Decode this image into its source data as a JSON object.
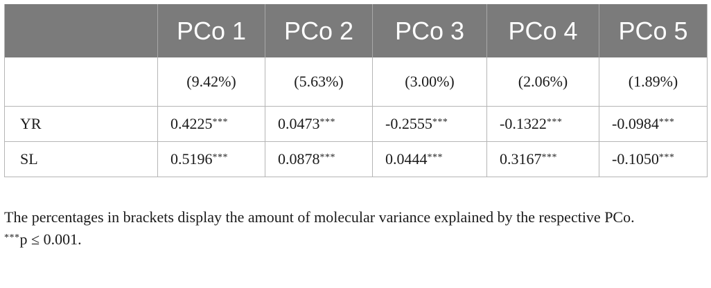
{
  "table": {
    "header": [
      "",
      "PCo 1",
      "PCo 2",
      "PCo 3",
      "PCo 4",
      "PCo 5"
    ],
    "percent_row": [
      "",
      "(9.42%)",
      "(5.63%)",
      "(3.00%)",
      "(2.06%)",
      "(1.89%)"
    ],
    "rows": [
      {
        "label": "YR",
        "values": [
          "0.4225",
          "0.0473",
          "-0.2555",
          "-0.1322",
          "-0.0984"
        ],
        "marks": [
          "***",
          "***",
          "***",
          "***",
          "***"
        ]
      },
      {
        "label": "SL",
        "values": [
          "0.5196",
          "0.0878",
          "0.0444",
          "0.3167",
          "-0.1050"
        ],
        "marks": [
          "***",
          "***",
          "***",
          "***",
          "***"
        ]
      }
    ]
  },
  "footnotes": {
    "note": "The percentages in brackets display the amount of molecular variance explained by the respective PCo.",
    "significance_mark": "***",
    "significance_text": "p ≤ 0.001."
  }
}
